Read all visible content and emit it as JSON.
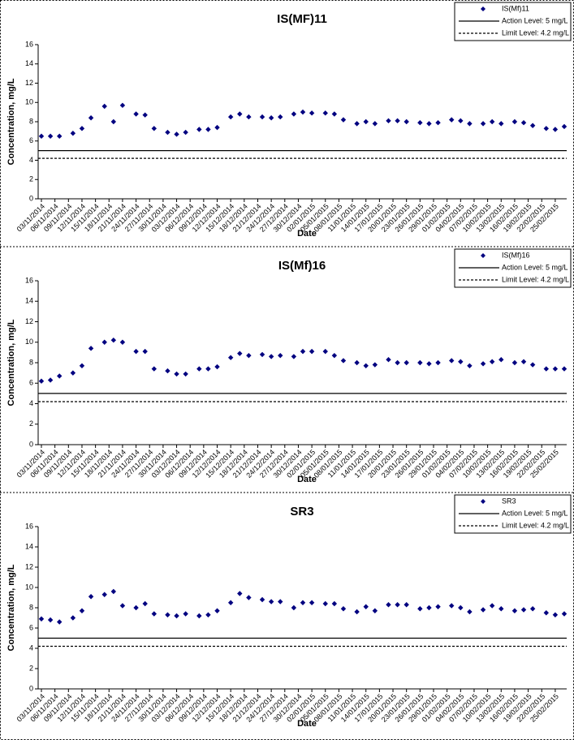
{
  "chart_data": [
    {
      "type": "scatter",
      "title": "IS(MF)11",
      "x_label": "Date",
      "y_label": "Concentration, mg/L",
      "x": [
        "03/11/2014",
        "05/11/2014",
        "07/11/2014",
        "10/11/2014",
        "12/11/2014",
        "14/11/2014",
        "17/11/2014",
        "19/11/2014",
        "21/11/2014",
        "24/11/2014",
        "26/11/2014",
        "28/11/2014",
        "01/12/2014",
        "03/12/2014",
        "05/12/2014",
        "08/12/2014",
        "10/12/2014",
        "12/12/2014",
        "15/12/2014",
        "17/12/2014",
        "19/12/2014",
        "22/12/2014",
        "24/12/2014",
        "26/12/2014",
        "29/12/2014",
        "31/12/2014",
        "02/01/2015",
        "05/01/2015",
        "07/01/2015",
        "09/01/2015",
        "12/01/2015",
        "14/01/2015",
        "16/01/2015",
        "19/01/2015",
        "21/01/2015",
        "23/01/2015",
        "26/01/2015",
        "28/01/2015",
        "30/01/2015",
        "02/02/2015",
        "04/02/2015",
        "06/02/2015",
        "09/02/2015",
        "11/02/2015",
        "13/02/2015",
        "16/02/2015",
        "18/02/2015",
        "20/02/2015",
        "23/02/2015",
        "25/02/2015",
        "27/02/2015"
      ],
      "series": [
        {
          "name": "IS(Mf)11",
          "color": "#000080",
          "values": [
            6.5,
            6.5,
            6.5,
            6.8,
            7.3,
            8.4,
            9.6,
            8.0,
            9.7,
            8.8,
            8.7,
            7.3,
            6.9,
            6.7,
            6.9,
            7.2,
            7.2,
            7.4,
            8.5,
            8.8,
            8.5,
            8.5,
            8.4,
            8.5,
            8.8,
            9.0,
            8.9,
            8.9,
            8.8,
            8.2,
            7.8,
            8.0,
            7.8,
            8.1,
            8.1,
            8.0,
            7.9,
            7.8,
            7.9,
            8.2,
            8.1,
            7.8,
            7.8,
            8.0,
            7.8,
            8.0,
            7.9,
            7.6,
            7.3,
            7.2,
            7.5
          ]
        }
      ],
      "reference_lines": [
        {
          "name": "Action Level: 5 mg/L",
          "value": 5,
          "style": "solid"
        },
        {
          "name": "Limit Level: 4.2 mg/L",
          "value": 4.2,
          "style": "dashed"
        }
      ],
      "xlim": [
        "03/11/2014",
        "27/02/2015"
      ],
      "xticks": [
        "03/11/2014",
        "06/11/2014",
        "09/11/2014",
        "12/11/2014",
        "15/11/2014",
        "18/11/2014",
        "21/11/2014",
        "24/11/2014",
        "27/11/2014",
        "30/11/2014",
        "03/12/2014",
        "06/12/2014",
        "09/12/2014",
        "12/12/2014",
        "15/12/2014",
        "18/12/2014",
        "21/12/2014",
        "24/12/2014",
        "27/12/2014",
        "30/12/2014",
        "02/01/2015",
        "05/01/2015",
        "08/01/2015",
        "11/01/2015",
        "14/01/2015",
        "17/01/2015",
        "20/01/2015",
        "23/01/2015",
        "26/01/2015",
        "29/01/2015",
        "01/02/2015",
        "04/02/2015",
        "07/02/2015",
        "10/02/2015",
        "13/02/2015",
        "16/02/2015",
        "19/02/2015",
        "22/02/2015",
        "25/02/2015"
      ],
      "ylim": [
        0,
        16
      ],
      "yticks": [
        0,
        2,
        4,
        6,
        8,
        10,
        12,
        14,
        16
      ],
      "legend": "top-right"
    },
    {
      "type": "scatter",
      "title": "IS(Mf)16",
      "x_label": "Date",
      "y_label": "Concentration, mg/L",
      "x": [
        "03/11/2014",
        "05/11/2014",
        "07/11/2014",
        "10/11/2014",
        "12/11/2014",
        "14/11/2014",
        "17/11/2014",
        "19/11/2014",
        "21/11/2014",
        "24/11/2014",
        "26/11/2014",
        "28/11/2014",
        "01/12/2014",
        "03/12/2014",
        "05/12/2014",
        "08/12/2014",
        "10/12/2014",
        "12/12/2014",
        "15/12/2014",
        "17/12/2014",
        "19/12/2014",
        "22/12/2014",
        "24/12/2014",
        "26/12/2014",
        "29/12/2014",
        "31/12/2014",
        "02/01/2015",
        "05/01/2015",
        "07/01/2015",
        "09/01/2015",
        "12/01/2015",
        "14/01/2015",
        "16/01/2015",
        "19/01/2015",
        "21/01/2015",
        "23/01/2015",
        "26/01/2015",
        "28/01/2015",
        "30/01/2015",
        "02/02/2015",
        "04/02/2015",
        "06/02/2015",
        "09/02/2015",
        "11/02/2015",
        "13/02/2015",
        "16/02/2015",
        "18/02/2015",
        "20/02/2015",
        "23/02/2015",
        "25/02/2015",
        "27/02/2015"
      ],
      "series": [
        {
          "name": "IS(Mf)16",
          "color": "#000080",
          "values": [
            6.2,
            6.3,
            6.7,
            7.0,
            7.7,
            9.4,
            10.0,
            10.2,
            10.0,
            9.1,
            9.1,
            7.4,
            7.2,
            6.9,
            6.9,
            7.4,
            7.4,
            7.6,
            8.5,
            8.9,
            8.7,
            8.8,
            8.6,
            8.7,
            8.6,
            9.1,
            9.1,
            9.1,
            8.7,
            8.2,
            8.0,
            7.7,
            7.8,
            8.3,
            8.0,
            8.0,
            8.0,
            7.9,
            8.0,
            8.2,
            8.1,
            7.7,
            7.9,
            8.1,
            8.3,
            8.0,
            8.1,
            7.8,
            7.4,
            7.4,
            7.4
          ]
        }
      ],
      "reference_lines": [
        {
          "name": "Action Level: 5 mg/L",
          "value": 5,
          "style": "solid"
        },
        {
          "name": "Limit Level: 4.2 mg/L",
          "value": 4.2,
          "style": "dashed"
        }
      ],
      "xlim": [
        "03/11/2014",
        "27/02/2015"
      ],
      "xticks": [
        "03/11/2014",
        "06/11/2014",
        "09/11/2014",
        "12/11/2014",
        "15/11/2014",
        "18/11/2014",
        "21/11/2014",
        "24/11/2014",
        "27/11/2014",
        "30/11/2014",
        "03/12/2014",
        "06/12/2014",
        "09/12/2014",
        "12/12/2014",
        "15/12/2014",
        "18/12/2014",
        "21/12/2014",
        "24/12/2014",
        "27/12/2014",
        "30/12/2014",
        "02/01/2015",
        "05/01/2015",
        "08/01/2015",
        "11/01/2015",
        "14/01/2015",
        "17/01/2015",
        "20/01/2015",
        "23/01/2015",
        "26/01/2015",
        "29/01/2015",
        "01/02/2015",
        "04/02/2015",
        "07/02/2015",
        "10/02/2015",
        "13/02/2015",
        "16/02/2015",
        "19/02/2015",
        "22/02/2015",
        "25/02/2015"
      ],
      "ylim": [
        0,
        16
      ],
      "yticks": [
        0,
        2,
        4,
        6,
        8,
        10,
        12,
        14,
        16
      ],
      "legend": "top-right"
    },
    {
      "type": "scatter",
      "title": "SR3",
      "x_label": "Date",
      "y_label": "Concentration, mg/L",
      "x": [
        "03/11/2014",
        "05/11/2014",
        "07/11/2014",
        "10/11/2014",
        "12/11/2014",
        "14/11/2014",
        "17/11/2014",
        "19/11/2014",
        "21/11/2014",
        "24/11/2014",
        "26/11/2014",
        "28/11/2014",
        "01/12/2014",
        "03/12/2014",
        "05/12/2014",
        "08/12/2014",
        "10/12/2014",
        "12/12/2014",
        "15/12/2014",
        "17/12/2014",
        "19/12/2014",
        "22/12/2014",
        "24/12/2014",
        "26/12/2014",
        "29/12/2014",
        "31/12/2014",
        "02/01/2015",
        "05/01/2015",
        "07/01/2015",
        "09/01/2015",
        "12/01/2015",
        "14/01/2015",
        "16/01/2015",
        "19/01/2015",
        "21/01/2015",
        "23/01/2015",
        "26/01/2015",
        "28/01/2015",
        "30/01/2015",
        "02/02/2015",
        "04/02/2015",
        "06/02/2015",
        "09/02/2015",
        "11/02/2015",
        "13/02/2015",
        "16/02/2015",
        "18/02/2015",
        "20/02/2015",
        "23/02/2015",
        "25/02/2015",
        "27/02/2015"
      ],
      "series": [
        {
          "name": "SR3",
          "color": "#000080",
          "values": [
            6.9,
            6.8,
            6.6,
            7.0,
            7.7,
            9.1,
            9.3,
            9.6,
            8.2,
            8.0,
            8.4,
            7.4,
            7.3,
            7.2,
            7.4,
            7.2,
            7.3,
            7.7,
            8.5,
            9.4,
            9.0,
            8.8,
            8.6,
            8.6,
            8.0,
            8.5,
            8.5,
            8.4,
            8.4,
            7.9,
            7.6,
            8.1,
            7.7,
            8.3,
            8.3,
            8.3,
            7.9,
            8.0,
            8.1,
            8.2,
            8.0,
            7.6,
            7.8,
            8.2,
            7.9,
            7.7,
            7.8,
            7.9,
            7.5,
            7.3,
            7.4
          ]
        }
      ],
      "reference_lines": [
        {
          "name": "Action Level: 5 mg/L",
          "value": 5,
          "style": "solid"
        },
        {
          "name": "Limit Level: 4.2 mg/L",
          "value": 4.2,
          "style": "dashed"
        }
      ],
      "xlim": [
        "03/11/2014",
        "27/02/2015"
      ],
      "xticks": [
        "03/11/2014",
        "06/11/2014",
        "09/11/2014",
        "12/11/2014",
        "15/11/2014",
        "18/11/2014",
        "21/11/2014",
        "24/11/2014",
        "27/11/2014",
        "30/11/2014",
        "03/12/2014",
        "06/12/2014",
        "09/12/2014",
        "12/12/2014",
        "15/12/2014",
        "18/12/2014",
        "21/12/2014",
        "24/12/2014",
        "27/12/2014",
        "30/12/2014",
        "02/01/2015",
        "05/01/2015",
        "08/01/2015",
        "11/01/2015",
        "14/01/2015",
        "17/01/2015",
        "20/01/2015",
        "23/01/2015",
        "26/01/2015",
        "29/01/2015",
        "01/02/2015",
        "04/02/2015",
        "07/02/2015",
        "10/02/2015",
        "13/02/2015",
        "16/02/2015",
        "19/02/2015",
        "22/02/2015",
        "25/02/2015"
      ],
      "ylim": [
        0,
        16
      ],
      "yticks": [
        0,
        2,
        4,
        6,
        8,
        10,
        12,
        14,
        16
      ],
      "legend": "top-right"
    }
  ]
}
